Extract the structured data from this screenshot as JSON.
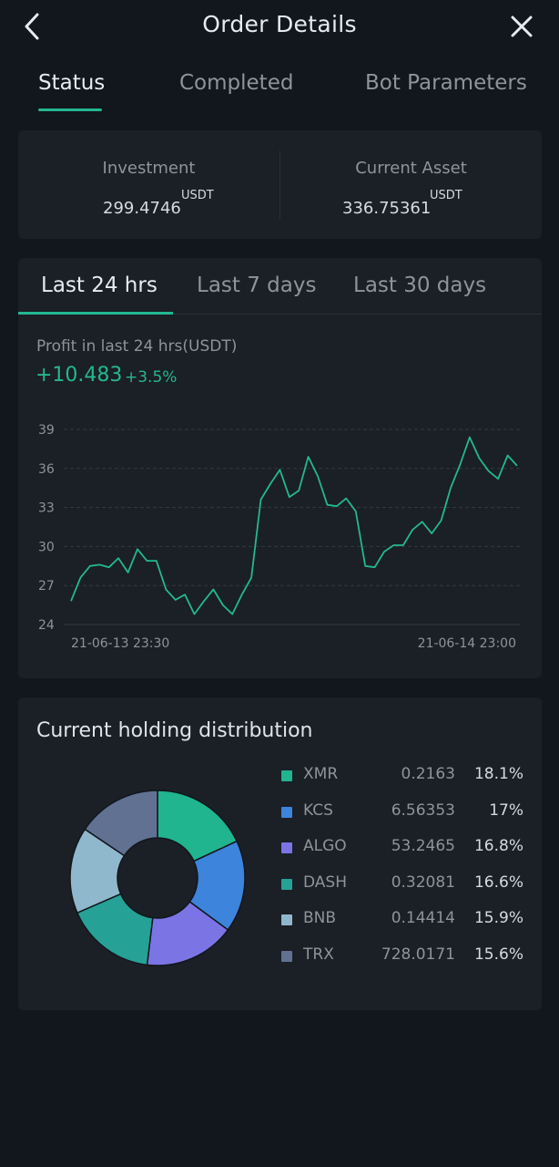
{
  "header": {
    "title": "Order Details",
    "back_icon": "chevron-left-icon",
    "close_icon": "close-icon"
  },
  "main_tabs": [
    {
      "label": "Status",
      "active": true
    },
    {
      "label": "Completed",
      "active": false
    },
    {
      "label": "Bot Parameters",
      "active": false
    }
  ],
  "summary": {
    "investment": {
      "label": "Investment",
      "value": "299.4746",
      "unit": "USDT"
    },
    "current_asset": {
      "label": "Current Asset",
      "value": "336.75361",
      "unit": "USDT"
    }
  },
  "range_tabs": [
    {
      "label": "Last 24 hrs",
      "active": true
    },
    {
      "label": "Last 7 days",
      "active": false
    },
    {
      "label": "Last 30 days",
      "active": false
    }
  ],
  "profit": {
    "label": "Profit in last 24 hrs(USDT)",
    "value": "+10.483",
    "percent": "+3.5%"
  },
  "colors": {
    "accent": "#23b891",
    "background": "#12161d",
    "card": "#1b1f26",
    "muted_text": "#8d949c"
  },
  "chart_data": {
    "type": "line",
    "title": "",
    "xlabel": "",
    "ylabel": "",
    "ylim": [
      24,
      39
    ],
    "yticks": [
      "39",
      "36",
      "33",
      "30",
      "27",
      "24"
    ],
    "xtick_labels": [
      "21-06-13 23:30",
      "21-06-14 23:00"
    ],
    "grid": true,
    "series": [
      {
        "color": "#23b891",
        "values": [
          25.8,
          27.6,
          28.5,
          28.6,
          28.4,
          29.1,
          28.0,
          29.8,
          28.9,
          28.9,
          26.7,
          25.9,
          26.3,
          24.8,
          25.8,
          26.7,
          25.5,
          24.8,
          26.3,
          27.6,
          33.6,
          34.8,
          35.9,
          33.8,
          34.3,
          36.9,
          35.4,
          33.2,
          33.1,
          33.7,
          32.7,
          28.5,
          28.4,
          29.6,
          30.1,
          30.1,
          31.3,
          31.9,
          31.0,
          32.0,
          34.5,
          36.3,
          38.4,
          36.8,
          35.8,
          35.2,
          37.0,
          36.2
        ]
      }
    ]
  },
  "distribution": {
    "title": "Current holding distribution",
    "chart_data": {
      "type": "pie",
      "categories": [
        "XMR",
        "KCS",
        "ALGO",
        "DASH",
        "BNB",
        "TRX"
      ],
      "values": [
        18.1,
        17,
        16.8,
        16.6,
        15.9,
        15.6
      ],
      "colors": [
        "#20b48f",
        "#3d84dc",
        "#7b74e4",
        "#26a195",
        "#8fb8cc",
        "#617191"
      ]
    },
    "rows": [
      {
        "name": "XMR",
        "qty": "0.2163",
        "pct": "18.1%",
        "color": "#20b48f"
      },
      {
        "name": "KCS",
        "qty": "6.56353",
        "pct": "17%",
        "color": "#3d84dc"
      },
      {
        "name": "ALGO",
        "qty": "53.2465",
        "pct": "16.8%",
        "color": "#7b74e4"
      },
      {
        "name": "DASH",
        "qty": "0.32081",
        "pct": "16.6%",
        "color": "#26a195"
      },
      {
        "name": "BNB",
        "qty": "0.14414",
        "pct": "15.9%",
        "color": "#8fb8cc"
      },
      {
        "name": "TRX",
        "qty": "728.0171",
        "pct": "15.6%",
        "color": "#617191"
      }
    ]
  }
}
